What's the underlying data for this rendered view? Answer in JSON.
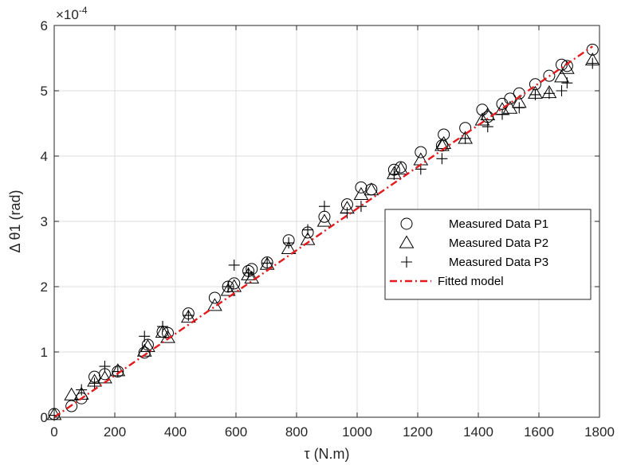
{
  "chart_data": {
    "type": "scatter",
    "title": "",
    "xlabel": "τ (N.m)",
    "ylabel": "Δ θ1 (rad)",
    "y_exponent_label": "×10",
    "y_exponent_power": "-4",
    "xlim": [
      0,
      1800
    ],
    "ylim": [
      0,
      6
    ],
    "x_ticks": [
      "0",
      "200",
      "400",
      "600",
      "800",
      "1000",
      "1200",
      "1400",
      "1600",
      "1800"
    ],
    "y_ticks": [
      "0",
      "1",
      "2",
      "3",
      "4",
      "5",
      "6"
    ],
    "grid": true,
    "legend_position": "center-right",
    "series": [
      {
        "name": "Measured Data P1",
        "marker": "circle",
        "x": [
          0,
          57,
          90,
          133,
          167,
          210,
          298,
          309,
          358,
          375,
          443,
          530,
          574,
          594,
          641,
          652,
          703,
          774,
          837,
          892,
          967,
          1013,
          1047,
          1122,
          1144,
          1210,
          1280,
          1286,
          1357,
          1413,
          1431,
          1479,
          1505,
          1535,
          1588,
          1634,
          1675,
          1693,
          1777
        ],
        "y": [
          0.05,
          0.17,
          0.29,
          0.62,
          0.66,
          0.7,
          0.99,
          1.11,
          1.31,
          1.29,
          1.59,
          1.83,
          2.0,
          2.05,
          2.24,
          2.27,
          2.37,
          2.71,
          2.83,
          3.07,
          3.26,
          3.52,
          3.49,
          3.79,
          3.83,
          4.06,
          4.16,
          4.33,
          4.43,
          4.71,
          4.6,
          4.8,
          4.88,
          4.96,
          5.1,
          5.23,
          5.4,
          5.38,
          5.63
        ]
      },
      {
        "name": "Measured Data P2",
        "marker": "triangle",
        "x": [
          0,
          57,
          90,
          133,
          167,
          210,
          298,
          309,
          358,
          375,
          443,
          530,
          574,
          594,
          641,
          652,
          703,
          774,
          837,
          892,
          967,
          1013,
          1047,
          1122,
          1144,
          1210,
          1280,
          1286,
          1357,
          1413,
          1431,
          1479,
          1505,
          1535,
          1588,
          1634,
          1675,
          1693,
          1777
        ],
        "y": [
          0.04,
          0.34,
          0.35,
          0.55,
          0.6,
          0.71,
          1.01,
          1.08,
          1.3,
          1.22,
          1.53,
          1.71,
          1.94,
          2.0,
          2.18,
          2.13,
          2.34,
          2.58,
          2.72,
          3.0,
          3.2,
          3.41,
          3.48,
          3.73,
          3.8,
          3.94,
          4.16,
          4.19,
          4.27,
          4.55,
          4.63,
          4.71,
          4.73,
          4.82,
          4.96,
          4.97,
          5.21,
          5.34,
          5.47
        ]
      },
      {
        "name": "Measured Data P3",
        "marker": "plus",
        "x": [
          0,
          90,
          133,
          167,
          210,
          298,
          358,
          443,
          574,
          594,
          641,
          703,
          774,
          837,
          892,
          967,
          1013,
          1122,
          1210,
          1280,
          1357,
          1431,
          1479,
          1535,
          1588,
          1634,
          1675,
          1693,
          1777
        ],
        "y": [
          0.03,
          0.42,
          0.52,
          0.78,
          0.7,
          1.24,
          1.39,
          1.56,
          2.0,
          2.33,
          2.21,
          2.36,
          2.67,
          2.87,
          3.23,
          3.13,
          3.23,
          3.72,
          3.8,
          3.96,
          4.27,
          4.45,
          4.64,
          4.74,
          4.94,
          4.96,
          5.0,
          5.12,
          5.42
        ]
      },
      {
        "name": "Fitted model",
        "line": "dash-dot",
        "x": [
          0,
          1777
        ],
        "y": [
          0,
          5.68
        ]
      }
    ]
  },
  "colors": {
    "marker": "#000000",
    "fit_line": "#e41a1c",
    "grid": "#dcdcdc",
    "axis": "#262626"
  }
}
